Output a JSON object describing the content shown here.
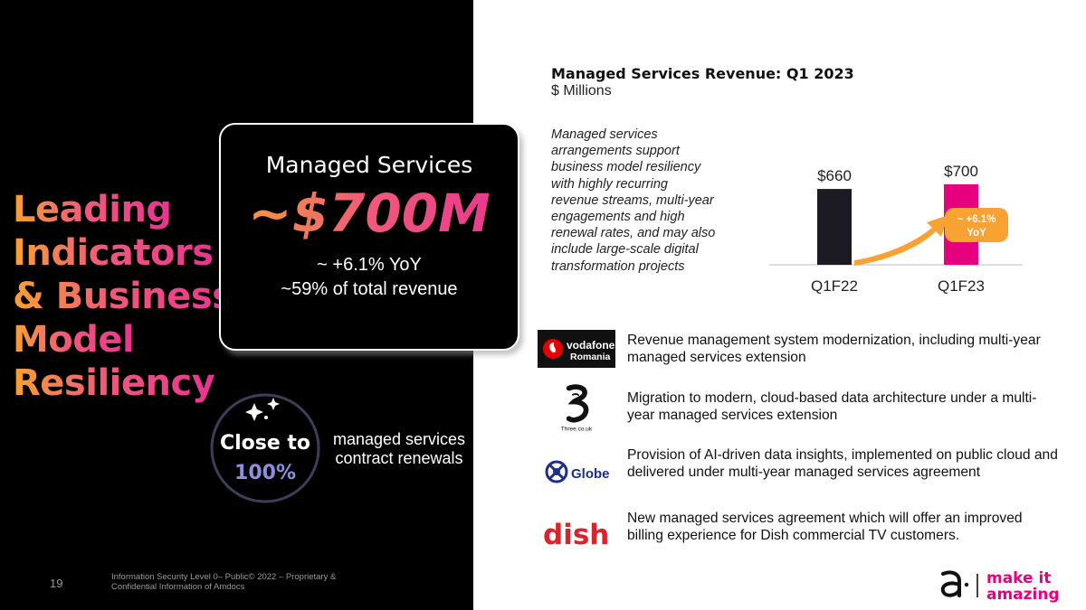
{
  "headline": [
    "Leading",
    "Indicators",
    "& Business",
    "Model",
    "Resiliency"
  ],
  "kpi": {
    "title": "Managed Services",
    "value": "~$700M",
    "yoy": "~ +6.1% YoY",
    "share": "~59% of total revenue"
  },
  "renewals": {
    "line1": "Close to",
    "line2": "100%",
    "caption": "managed services contract renewals"
  },
  "chart_header": {
    "title": "Managed Services Revenue: Q1 2023",
    "subtitle": "$ Millions",
    "note": "Managed services arrangements support business model resiliency with highly recurring revenue streams, multi-year engagements and high renewal rates, and may also include large-scale digital transformation projects"
  },
  "chart_data": {
    "type": "bar",
    "categories": [
      "Q1F22",
      "Q1F23"
    ],
    "values": [
      660,
      700
    ],
    "data_labels": [
      "$660",
      "$700"
    ],
    "bar_colors": [
      "#1c1b24",
      "#e6007e"
    ],
    "growth_callout": {
      "line1": "~ +6.1%",
      "line2": "YoY",
      "color": "#f7a233"
    },
    "ylim": [
      0,
      700
    ]
  },
  "case_studies": [
    {
      "logo": "vodafone-romania-logo",
      "logo_text": [
        "vodafone",
        "Romania"
      ],
      "text": "Revenue management system modernization, including multi-year managed services extension"
    },
    {
      "logo": "three-logo",
      "logo_text": [
        "Three.co.uk"
      ],
      "text": "Migration to modern, cloud-based data architecture under a multi-year managed services extension"
    },
    {
      "logo": "globe-logo",
      "logo_text": [
        "Globe"
      ],
      "text": "Provision of AI-driven data insights, implemented on public cloud and delivered under multi-year managed services agreement"
    },
    {
      "logo": "dish-logo",
      "logo_text": [
        "dish"
      ],
      "text": "New managed services agreement which will offer an improved billing experience for Dish commercial TV customers."
    }
  ],
  "footer": {
    "page_number": "19",
    "note": "Information Security Level 0– Public© 2022 – Proprietary & Confidential Information of Amdocs"
  },
  "brand": {
    "line1": "make it",
    "line2": "amazing",
    "color": "#e6007e"
  }
}
